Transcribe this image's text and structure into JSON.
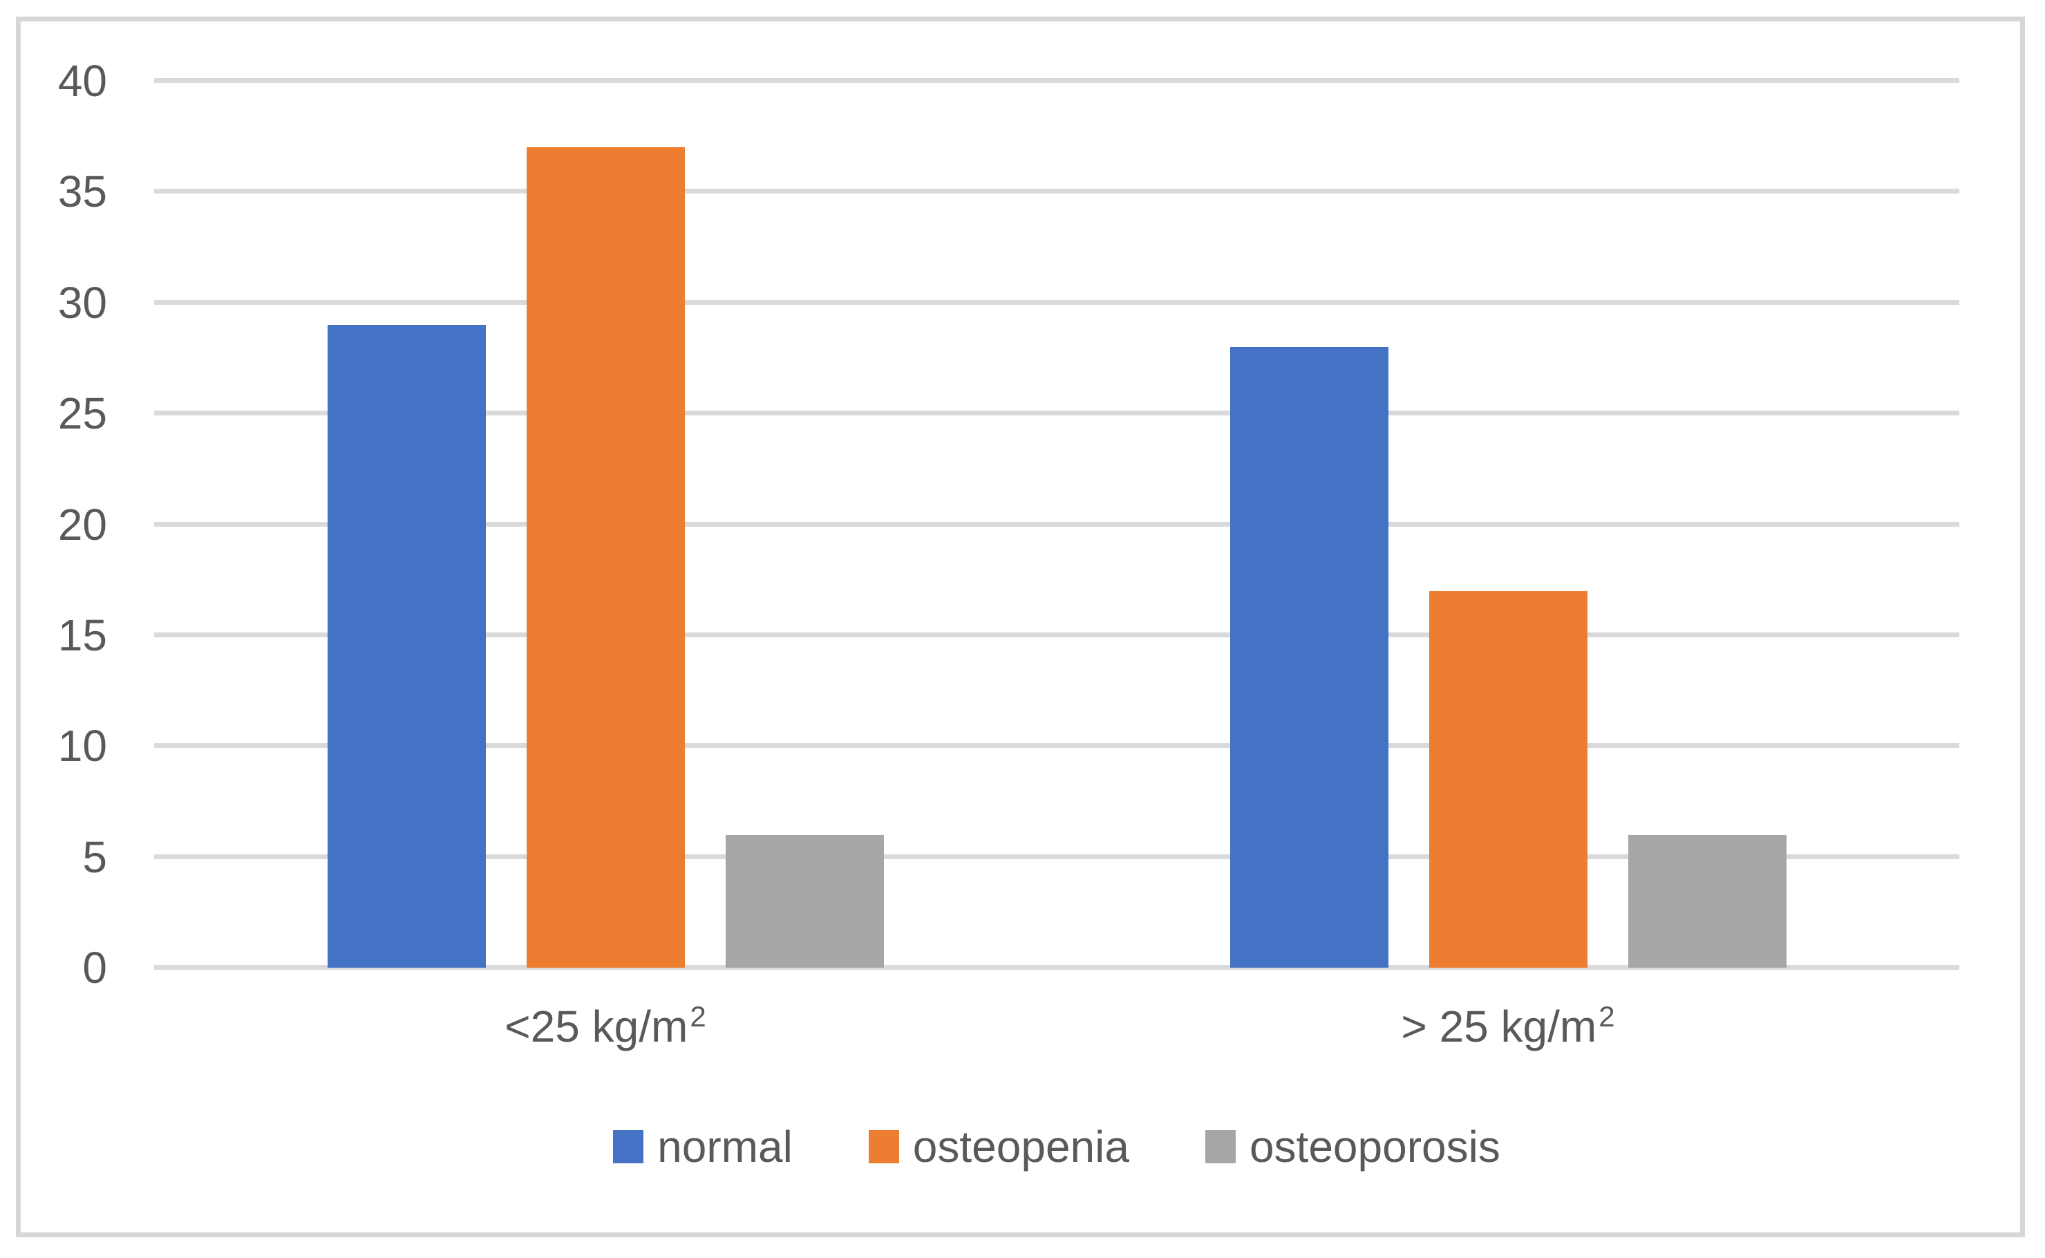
{
  "chart_data": {
    "type": "bar",
    "categories": [
      {
        "label": "<25 kg/m",
        "sup": "2"
      },
      {
        "label": "> 25 kg/m",
        "sup": "2"
      }
    ],
    "series": [
      {
        "name": "normal",
        "color": "#4472C4",
        "values": [
          29,
          28
        ]
      },
      {
        "name": "osteopenia",
        "color": "#ED7D31",
        "values": [
          37,
          17
        ]
      },
      {
        "name": "osteoporosis",
        "color": "#A6A6A6",
        "values": [
          6,
          6
        ]
      }
    ],
    "title": "",
    "xlabel": "",
    "ylabel": "",
    "ylim": [
      0,
      40
    ],
    "yticks": [
      0,
      5,
      10,
      15,
      20,
      25,
      30,
      35,
      40
    ],
    "grid": "horizontal",
    "legend_position": "bottom"
  },
  "colors": {
    "gridline": "#DADADA",
    "axis_text": "#595959",
    "figure_border": "#D6D6D6",
    "background": "#FFFFFF"
  }
}
